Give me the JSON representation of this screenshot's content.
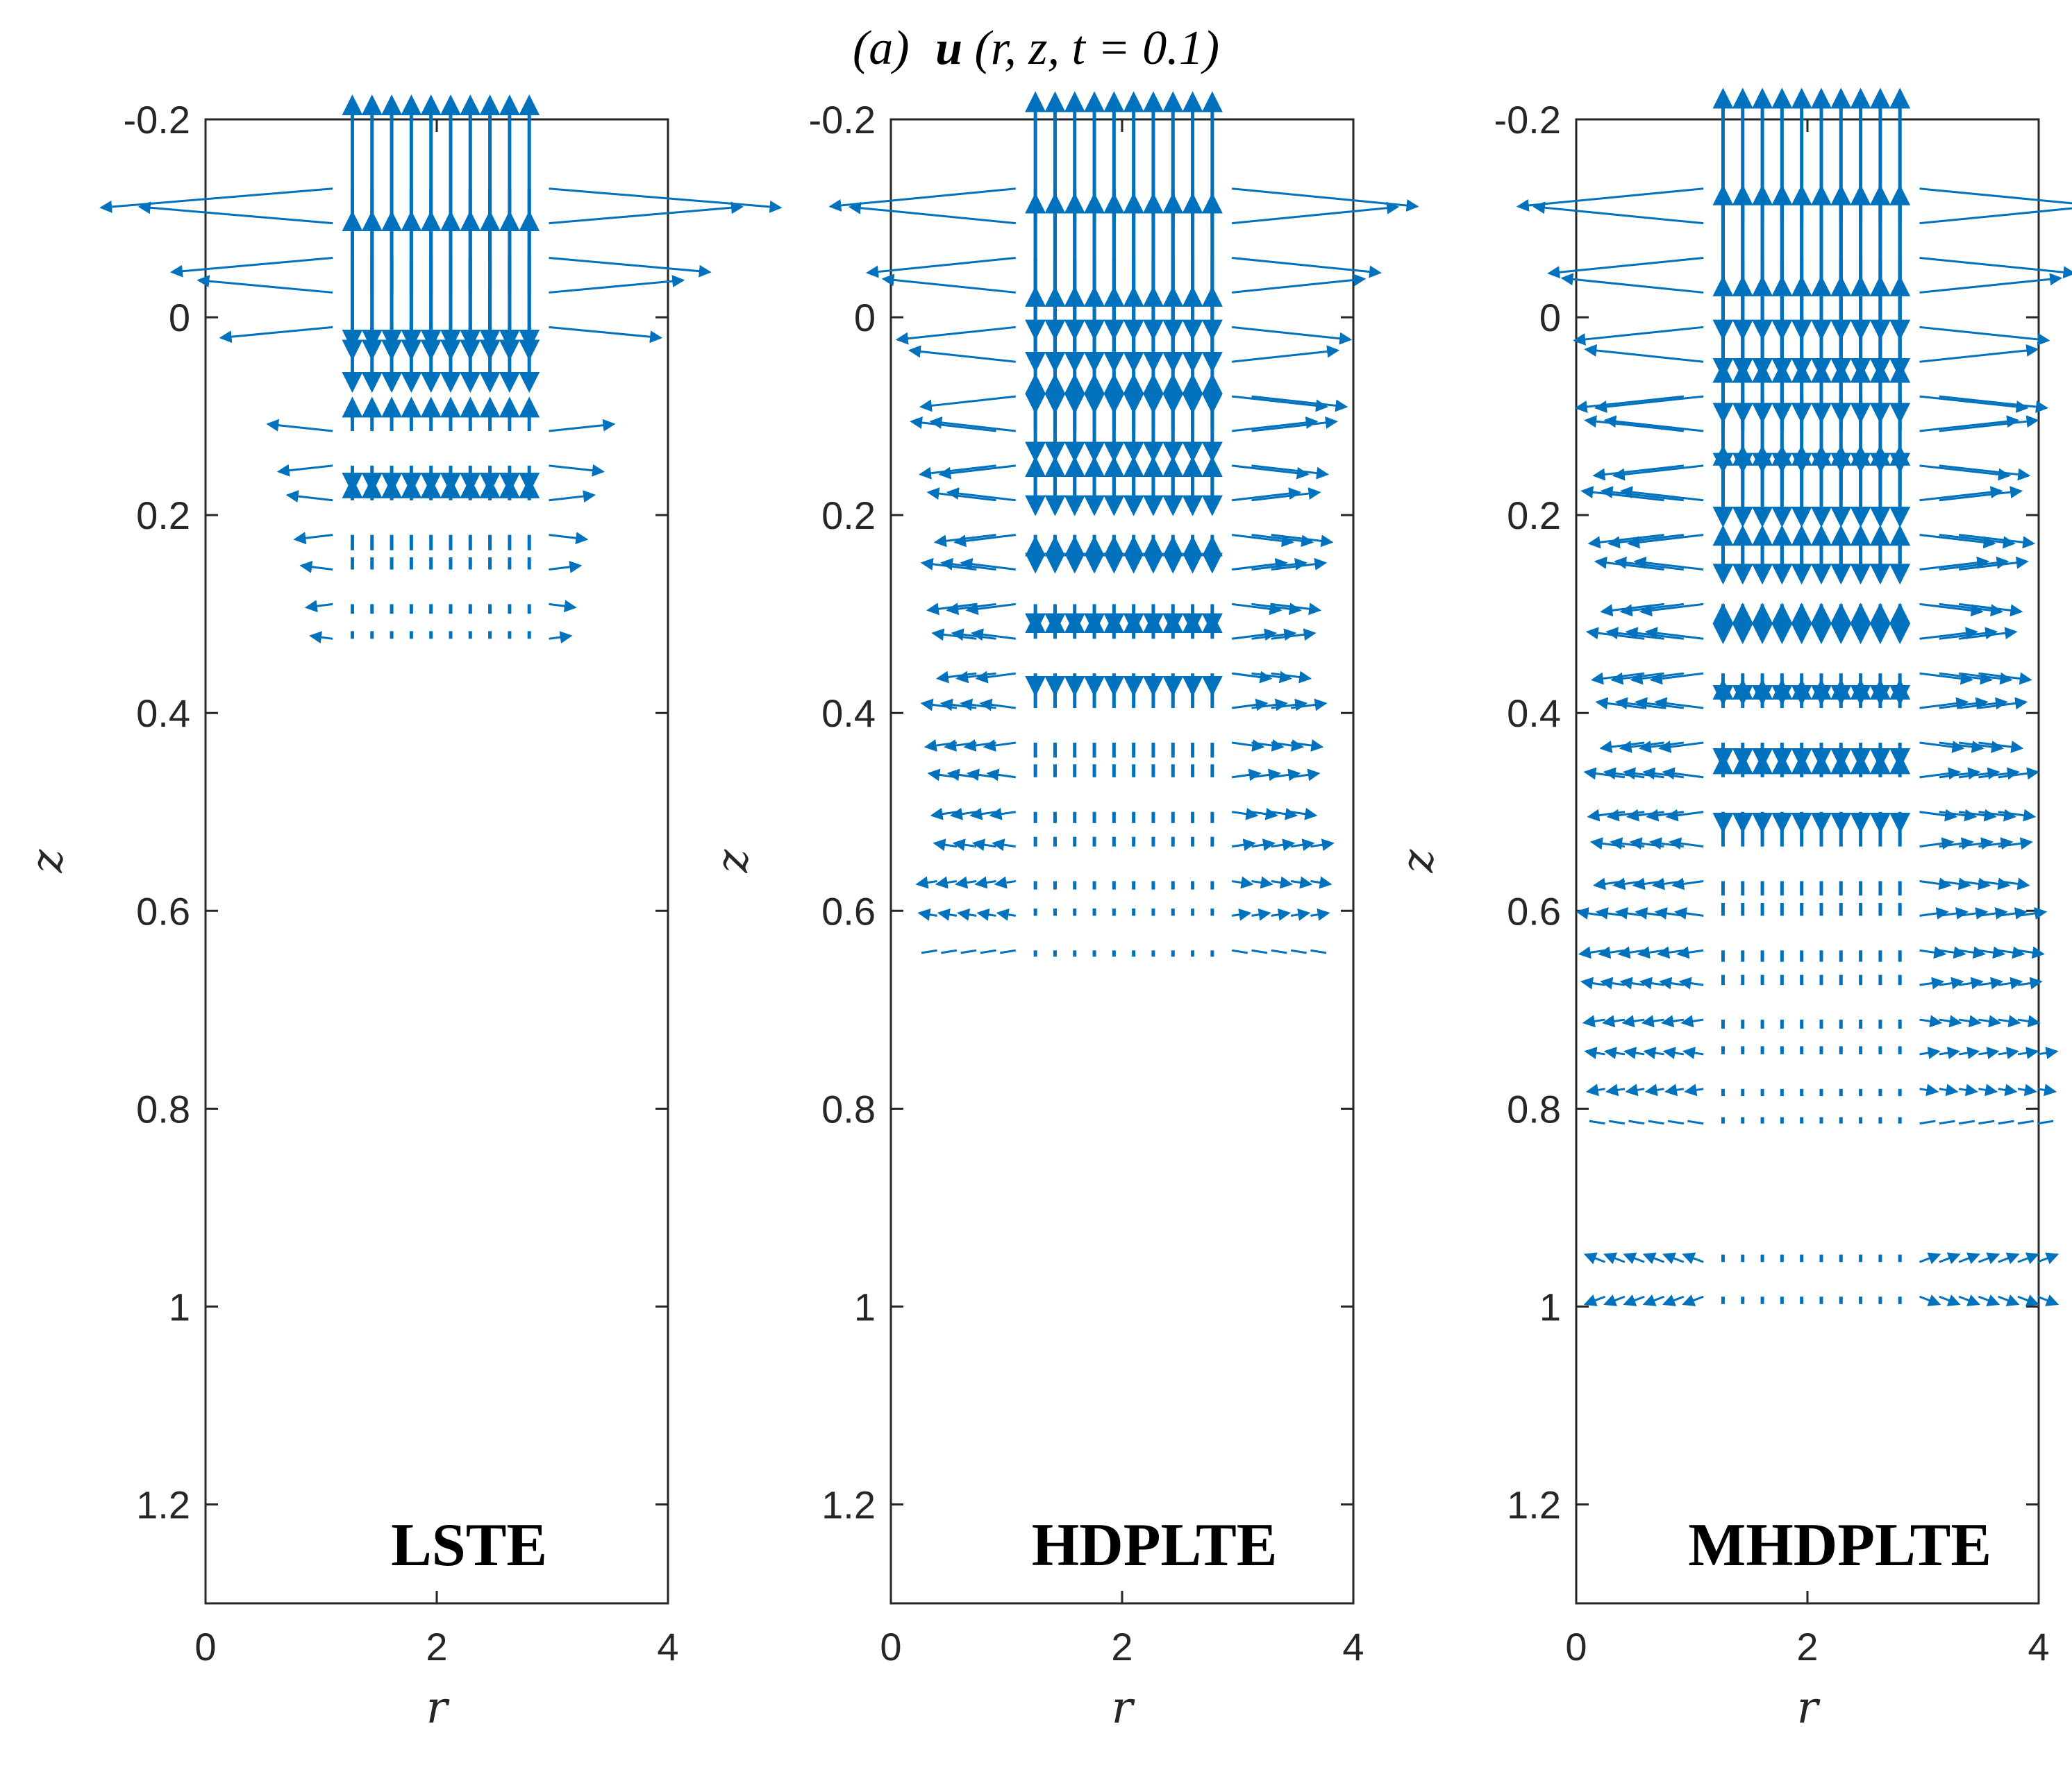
{
  "figure": {
    "title_tag": "(a)",
    "title_symbol": "u",
    "title_args": "(r, z, t = 0.1)"
  },
  "colors": {
    "arrow": "#0072BD",
    "axes": "#262626"
  },
  "chart_data": [
    {
      "type": "quiver",
      "panel_label": "LSTE",
      "xlabel": "r",
      "ylabel": "z",
      "xlim": [
        0,
        4
      ],
      "ylim": [
        -0.2,
        1.3
      ],
      "y_direction": "reversed",
      "xticks": [
        "0",
        "2",
        "4"
      ],
      "yticks": [
        "-0.2",
        "0",
        "0.2",
        "0.4",
        "0.6",
        "0.8",
        "1",
        "1.2"
      ],
      "field": {
        "r_min": 0.25,
        "r_step": 0.17,
        "r_count": 23,
        "z_min": -0.13,
        "z_step": 0.035,
        "z_count": 50,
        "core_r": [
          1.25,
          2.8
        ],
        "core_z": [
          -0.13,
          0.35
        ],
        "spread_per_z": 0.0,
        "z_cutoff": 0.35,
        "far_band_z": [],
        "gap_z": [
          0.03,
          0.11
        ],
        "max_vz": 0.16,
        "max_vr": 0.05
      }
    },
    {
      "type": "quiver",
      "panel_label": "HDPLTE",
      "xlabel": "r",
      "ylabel": "z",
      "xlim": [
        0,
        4
      ],
      "ylim": [
        -0.2,
        1.3
      ],
      "y_direction": "reversed",
      "xticks": [
        "0",
        "2",
        "4"
      ],
      "yticks": [
        "-0.2",
        "0",
        "0.2",
        "0.4",
        "0.6",
        "0.8",
        "1",
        "1.2"
      ],
      "field": {
        "r_min": 0.4,
        "r_step": 0.17,
        "r_count": 20,
        "z_min": -0.13,
        "z_step": 0.035,
        "z_count": 50,
        "core_r": [
          1.25,
          2.8
        ],
        "core_z": [
          -0.13,
          0.65
        ],
        "spread_per_z": 1.1,
        "z_cutoff": 0.65,
        "far_band_z": [],
        "gap_z": [],
        "max_vz": 0.15,
        "max_vr": 0.04
      }
    },
    {
      "type": "quiver",
      "panel_label": "MHDPLTE",
      "xlabel": "r",
      "ylabel": "z",
      "xlim": [
        0,
        4
      ],
      "ylim": [
        -0.2,
        1.3
      ],
      "y_direction": "reversed",
      "xticks": [
        "0",
        "2",
        "4"
      ],
      "yticks": [
        "-0.2",
        "0",
        "0.2",
        "0.4",
        "0.6",
        "0.8",
        "1",
        "1.2"
      ],
      "field": {
        "r_min": 0.25,
        "r_step": 0.17,
        "r_count": 23,
        "z_min": -0.13,
        "z_step": 0.035,
        "z_count": 50,
        "core_r": [
          1.25,
          2.8
        ],
        "core_z": [
          -0.13,
          0.83
        ],
        "spread_per_z": 1.3,
        "z_cutoff": 0.83,
        "far_band_z": [
          0.965,
          1.0
        ],
        "gap_z": [],
        "max_vz": 0.15,
        "max_vr": 0.04
      }
    }
  ]
}
